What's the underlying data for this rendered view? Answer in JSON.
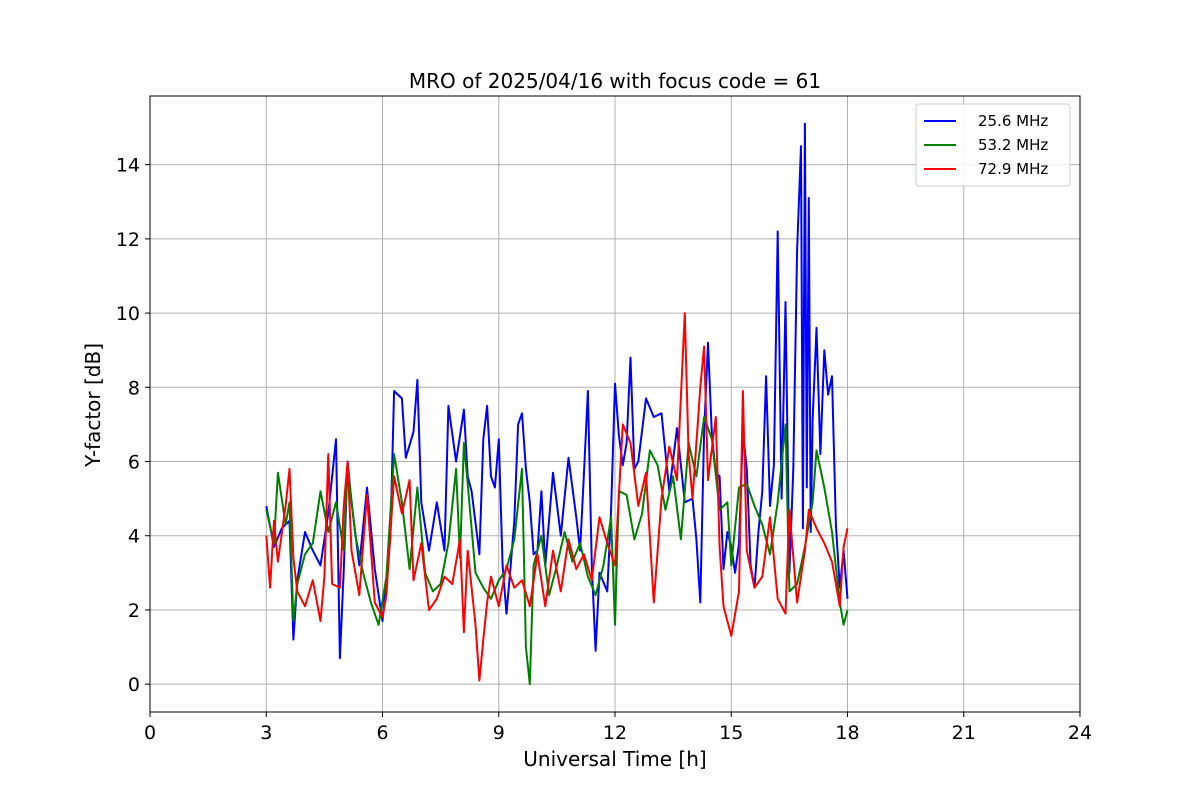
{
  "chart_data": {
    "type": "line",
    "title": "MRO of 2025/04/16 with focus code = 61",
    "xlabel": "Universal Time [h]",
    "ylabel": "Y-factor [dB]",
    "xlim": [
      0,
      24
    ],
    "ylim": [
      -0.75,
      15.85
    ],
    "xticks": [
      0,
      3,
      6,
      9,
      12,
      15,
      18,
      21,
      24
    ],
    "yticks": [
      0,
      2,
      4,
      6,
      8,
      10,
      12,
      14
    ],
    "grid": true,
    "legend_position": "top-right",
    "series": [
      {
        "name": "25.6 MHz",
        "color": "#0000ff",
        "points": [
          [
            3.0,
            4.8
          ],
          [
            3.2,
            3.7
          ],
          [
            3.4,
            4.2
          ],
          [
            3.6,
            4.4
          ],
          [
            3.7,
            1.2
          ],
          [
            3.8,
            2.8
          ],
          [
            4.0,
            4.1
          ],
          [
            4.2,
            3.6
          ],
          [
            4.4,
            3.2
          ],
          [
            4.6,
            4.6
          ],
          [
            4.8,
            6.6
          ],
          [
            4.9,
            0.7
          ],
          [
            5.0,
            3.1
          ],
          [
            5.1,
            6.0
          ],
          [
            5.2,
            4.9
          ],
          [
            5.4,
            3.2
          ],
          [
            5.6,
            5.3
          ],
          [
            5.8,
            3.1
          ],
          [
            6.0,
            1.7
          ],
          [
            6.2,
            3.9
          ],
          [
            6.3,
            7.9
          ],
          [
            6.5,
            7.7
          ],
          [
            6.6,
            6.1
          ],
          [
            6.8,
            6.8
          ],
          [
            6.9,
            8.2
          ],
          [
            7.0,
            4.9
          ],
          [
            7.2,
            3.6
          ],
          [
            7.4,
            4.9
          ],
          [
            7.6,
            3.6
          ],
          [
            7.7,
            7.5
          ],
          [
            7.9,
            6.0
          ],
          [
            8.1,
            7.4
          ],
          [
            8.2,
            5.6
          ],
          [
            8.3,
            5.2
          ],
          [
            8.5,
            3.5
          ],
          [
            8.6,
            6.6
          ],
          [
            8.7,
            7.5
          ],
          [
            8.8,
            5.6
          ],
          [
            8.9,
            5.3
          ],
          [
            9.0,
            6.6
          ],
          [
            9.1,
            3.2
          ],
          [
            9.2,
            1.9
          ],
          [
            9.3,
            3.1
          ],
          [
            9.4,
            4.4
          ],
          [
            9.5,
            7.0
          ],
          [
            9.6,
            7.3
          ],
          [
            9.7,
            5.8
          ],
          [
            9.8,
            4.9
          ],
          [
            9.9,
            3.5
          ],
          [
            10.0,
            3.6
          ],
          [
            10.1,
            5.2
          ],
          [
            10.2,
            3.2
          ],
          [
            10.4,
            5.7
          ],
          [
            10.6,
            4.0
          ],
          [
            10.8,
            6.1
          ],
          [
            11.0,
            4.5
          ],
          [
            11.1,
            3.6
          ],
          [
            11.2,
            5.7
          ],
          [
            11.3,
            7.9
          ],
          [
            11.4,
            3.2
          ],
          [
            11.5,
            0.9
          ],
          [
            11.6,
            3.0
          ],
          [
            11.8,
            2.5
          ],
          [
            11.9,
            4.7
          ],
          [
            12.0,
            8.1
          ],
          [
            12.1,
            6.7
          ],
          [
            12.2,
            5.9
          ],
          [
            12.3,
            6.5
          ],
          [
            12.4,
            8.8
          ],
          [
            12.5,
            5.8
          ],
          [
            12.6,
            6.0
          ],
          [
            12.8,
            7.7
          ],
          [
            13.0,
            7.2
          ],
          [
            13.2,
            7.3
          ],
          [
            13.4,
            5.2
          ],
          [
            13.6,
            6.9
          ],
          [
            13.8,
            4.9
          ],
          [
            14.0,
            5.0
          ],
          [
            14.1,
            3.9
          ],
          [
            14.2,
            2.2
          ],
          [
            14.3,
            6.8
          ],
          [
            14.4,
            9.2
          ],
          [
            14.5,
            6.7
          ],
          [
            14.6,
            5.7
          ],
          [
            14.7,
            5.6
          ],
          [
            14.8,
            3.1
          ],
          [
            14.9,
            4.1
          ],
          [
            15.0,
            3.7
          ],
          [
            15.1,
            3.0
          ],
          [
            15.2,
            3.8
          ],
          [
            15.3,
            6.8
          ],
          [
            15.4,
            5.8
          ],
          [
            15.5,
            3.2
          ],
          [
            15.6,
            2.6
          ],
          [
            15.7,
            4.1
          ],
          [
            15.8,
            5.2
          ],
          [
            15.9,
            8.3
          ],
          [
            16.0,
            4.8
          ],
          [
            16.1,
            5.9
          ],
          [
            16.2,
            12.2
          ],
          [
            16.3,
            5.0
          ],
          [
            16.4,
            10.3
          ],
          [
            16.5,
            3.0
          ],
          [
            16.6,
            5.8
          ],
          [
            16.7,
            11.7
          ],
          [
            16.8,
            14.5
          ],
          [
            16.85,
            4.2
          ],
          [
            16.9,
            15.1
          ],
          [
            16.95,
            5.3
          ],
          [
            17.0,
            13.1
          ],
          [
            17.05,
            4.1
          ],
          [
            17.1,
            7.1
          ],
          [
            17.2,
            9.6
          ],
          [
            17.3,
            6.2
          ],
          [
            17.4,
            9.0
          ],
          [
            17.5,
            7.8
          ],
          [
            17.6,
            8.3
          ],
          [
            17.7,
            4.3
          ],
          [
            17.8,
            2.6
          ],
          [
            17.9,
            3.6
          ],
          [
            18.0,
            2.3
          ]
        ]
      },
      {
        "name": "53.2 MHz",
        "color": "#008000",
        "points": [
          [
            3.0,
            4.7
          ],
          [
            3.2,
            3.8
          ],
          [
            3.3,
            5.7
          ],
          [
            3.5,
            4.3
          ],
          [
            3.6,
            4.9
          ],
          [
            3.7,
            1.7
          ],
          [
            3.8,
            2.7
          ],
          [
            4.0,
            3.5
          ],
          [
            4.2,
            3.8
          ],
          [
            4.4,
            5.2
          ],
          [
            4.6,
            4.1
          ],
          [
            4.8,
            4.9
          ],
          [
            5.0,
            3.6
          ],
          [
            5.1,
            5.9
          ],
          [
            5.3,
            4.0
          ],
          [
            5.5,
            3.0
          ],
          [
            5.7,
            2.2
          ],
          [
            5.9,
            1.6
          ],
          [
            6.1,
            2.9
          ],
          [
            6.3,
            6.2
          ],
          [
            6.5,
            4.9
          ],
          [
            6.7,
            3.1
          ],
          [
            6.9,
            5.3
          ],
          [
            7.1,
            3.0
          ],
          [
            7.3,
            2.5
          ],
          [
            7.5,
            2.7
          ],
          [
            7.7,
            3.8
          ],
          [
            7.9,
            5.8
          ],
          [
            8.0,
            3.4
          ],
          [
            8.1,
            6.5
          ],
          [
            8.2,
            5.4
          ],
          [
            8.4,
            3.0
          ],
          [
            8.6,
            2.6
          ],
          [
            8.8,
            2.3
          ],
          [
            9.0,
            2.8
          ],
          [
            9.2,
            3.1
          ],
          [
            9.4,
            3.9
          ],
          [
            9.6,
            5.8
          ],
          [
            9.7,
            1.0
          ],
          [
            9.8,
            0.0
          ],
          [
            9.9,
            3.2
          ],
          [
            10.1,
            4.0
          ],
          [
            10.3,
            2.4
          ],
          [
            10.5,
            3.2
          ],
          [
            10.7,
            4.1
          ],
          [
            10.9,
            3.3
          ],
          [
            11.1,
            3.8
          ],
          [
            11.3,
            2.9
          ],
          [
            11.5,
            2.4
          ],
          [
            11.7,
            3.2
          ],
          [
            11.9,
            4.5
          ],
          [
            12.0,
            1.6
          ],
          [
            12.1,
            5.2
          ],
          [
            12.3,
            5.1
          ],
          [
            12.5,
            3.9
          ],
          [
            12.7,
            4.6
          ],
          [
            12.9,
            6.3
          ],
          [
            13.1,
            5.9
          ],
          [
            13.3,
            4.7
          ],
          [
            13.5,
            5.6
          ],
          [
            13.7,
            3.9
          ],
          [
            13.9,
            6.5
          ],
          [
            14.1,
            5.6
          ],
          [
            14.3,
            7.2
          ],
          [
            14.5,
            6.6
          ],
          [
            14.7,
            4.7
          ],
          [
            14.9,
            4.9
          ],
          [
            15.0,
            3.2
          ],
          [
            15.2,
            5.3
          ],
          [
            15.4,
            5.4
          ],
          [
            15.6,
            4.8
          ],
          [
            15.8,
            4.3
          ],
          [
            16.0,
            3.5
          ],
          [
            16.2,
            4.9
          ],
          [
            16.4,
            7.0
          ],
          [
            16.5,
            2.5
          ],
          [
            16.7,
            2.7
          ],
          [
            16.9,
            3.7
          ],
          [
            17.1,
            4.9
          ],
          [
            17.2,
            6.3
          ],
          [
            17.4,
            5.3
          ],
          [
            17.6,
            4.1
          ],
          [
            17.8,
            2.2
          ],
          [
            17.9,
            1.6
          ],
          [
            18.0,
            2.0
          ]
        ]
      },
      {
        "name": "72.9 MHz",
        "color": "#ff0000",
        "points": [
          [
            3.0,
            4.0
          ],
          [
            3.1,
            2.6
          ],
          [
            3.2,
            4.4
          ],
          [
            3.3,
            3.3
          ],
          [
            3.5,
            4.8
          ],
          [
            3.6,
            5.8
          ],
          [
            3.7,
            3.4
          ],
          [
            3.8,
            2.5
          ],
          [
            4.0,
            2.1
          ],
          [
            4.2,
            2.8
          ],
          [
            4.4,
            1.7
          ],
          [
            4.5,
            2.9
          ],
          [
            4.6,
            6.2
          ],
          [
            4.7,
            2.7
          ],
          [
            4.9,
            2.6
          ],
          [
            5.0,
            4.8
          ],
          [
            5.1,
            6.0
          ],
          [
            5.2,
            3.6
          ],
          [
            5.4,
            2.4
          ],
          [
            5.6,
            5.1
          ],
          [
            5.8,
            2.2
          ],
          [
            6.0,
            1.8
          ],
          [
            6.1,
            2.4
          ],
          [
            6.3,
            5.6
          ],
          [
            6.5,
            4.6
          ],
          [
            6.7,
            5.5
          ],
          [
            6.8,
            2.8
          ],
          [
            7.0,
            3.8
          ],
          [
            7.2,
            2.0
          ],
          [
            7.4,
            2.3
          ],
          [
            7.6,
            2.9
          ],
          [
            7.8,
            2.7
          ],
          [
            8.0,
            3.9
          ],
          [
            8.1,
            1.4
          ],
          [
            8.2,
            3.6
          ],
          [
            8.4,
            1.6
          ],
          [
            8.5,
            0.1
          ],
          [
            8.6,
            1.2
          ],
          [
            8.7,
            2.2
          ],
          [
            8.8,
            2.9
          ],
          [
            9.0,
            2.1
          ],
          [
            9.2,
            3.2
          ],
          [
            9.4,
            2.6
          ],
          [
            9.6,
            2.8
          ],
          [
            9.8,
            2.1
          ],
          [
            10.0,
            3.5
          ],
          [
            10.2,
            2.1
          ],
          [
            10.4,
            3.6
          ],
          [
            10.6,
            2.5
          ],
          [
            10.8,
            3.9
          ],
          [
            11.0,
            3.1
          ],
          [
            11.2,
            3.5
          ],
          [
            11.4,
            2.8
          ],
          [
            11.6,
            4.5
          ],
          [
            11.8,
            3.8
          ],
          [
            12.0,
            3.2
          ],
          [
            12.2,
            7.0
          ],
          [
            12.4,
            6.5
          ],
          [
            12.6,
            4.8
          ],
          [
            12.8,
            5.7
          ],
          [
            13.0,
            2.2
          ],
          [
            13.2,
            5.0
          ],
          [
            13.4,
            6.4
          ],
          [
            13.6,
            5.5
          ],
          [
            13.8,
            10.0
          ],
          [
            13.9,
            6.2
          ],
          [
            14.0,
            5.0
          ],
          [
            14.2,
            8.0
          ],
          [
            14.3,
            9.1
          ],
          [
            14.4,
            5.5
          ],
          [
            14.6,
            7.2
          ],
          [
            14.7,
            3.7
          ],
          [
            14.8,
            2.1
          ],
          [
            15.0,
            1.3
          ],
          [
            15.2,
            2.5
          ],
          [
            15.3,
            7.9
          ],
          [
            15.4,
            3.6
          ],
          [
            15.6,
            2.6
          ],
          [
            15.8,
            2.9
          ],
          [
            16.0,
            4.5
          ],
          [
            16.2,
            2.3
          ],
          [
            16.4,
            1.9
          ],
          [
            16.5,
            4.7
          ],
          [
            16.7,
            2.2
          ],
          [
            16.9,
            3.6
          ],
          [
            17.0,
            4.7
          ],
          [
            17.2,
            4.2
          ],
          [
            17.4,
            3.8
          ],
          [
            17.6,
            3.3
          ],
          [
            17.8,
            2.1
          ],
          [
            17.9,
            3.7
          ],
          [
            18.0,
            4.2
          ]
        ]
      }
    ]
  }
}
